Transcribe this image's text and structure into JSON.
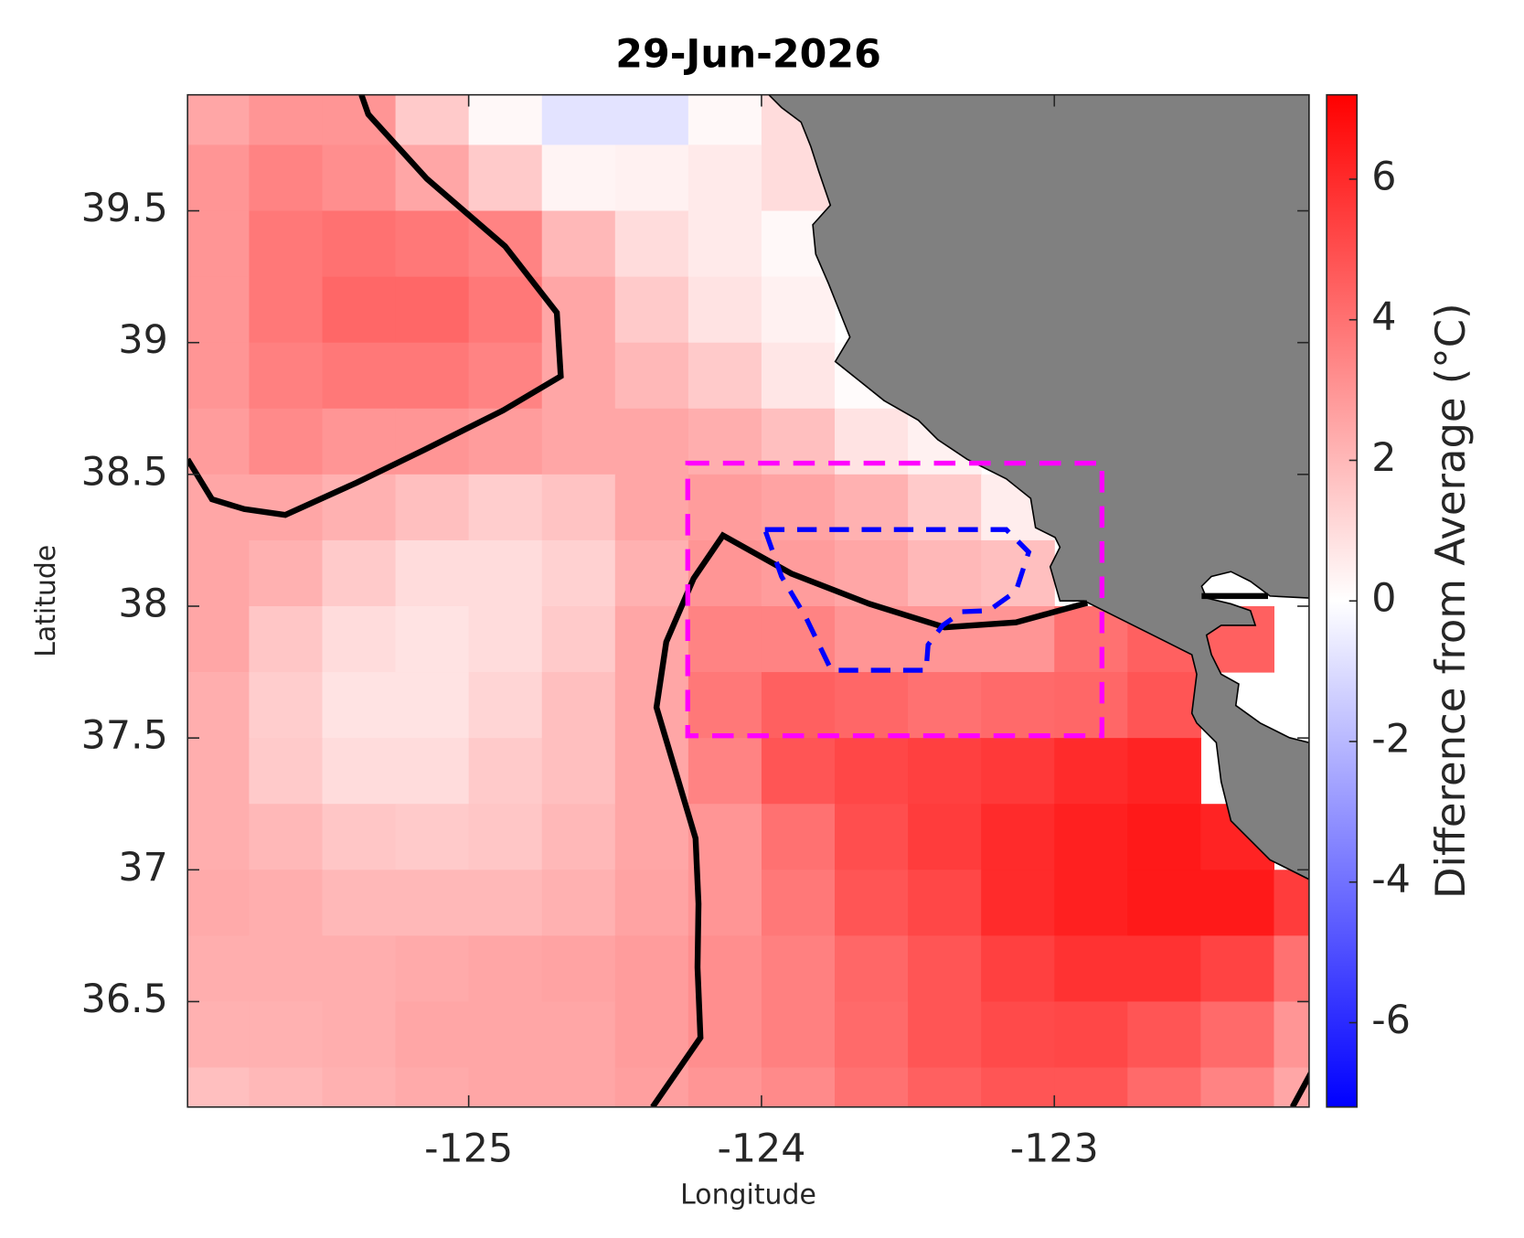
{
  "chart_data": {
    "type": "heatmap",
    "title": "29-Jun-2026",
    "x_label": "Longitude",
    "y_label": "Latitude",
    "colorbar_label": "Difference from Average (°C)",
    "xlim": [
      -125.96,
      -122.13
    ],
    "ylim": [
      36.1,
      39.94
    ],
    "xticks": [
      -125,
      -124,
      -123
    ],
    "yticks": [
      36.5,
      37,
      37.5,
      38,
      38.5,
      39,
      39.5
    ],
    "clim": [
      -7.2,
      7.2
    ],
    "cticks": [
      -6,
      -4,
      -2,
      0,
      2,
      4,
      6
    ],
    "x": [
      -125.875,
      -125.625,
      -125.375,
      -125.125,
      -124.875,
      -124.625,
      -124.375,
      -124.125,
      -123.875,
      -123.625,
      -123.375,
      -123.125,
      -122.875,
      -122.625,
      -122.375,
      -122.125
    ],
    "y": [
      39.875,
      39.625,
      39.375,
      39.125,
      38.875,
      38.625,
      38.375,
      38.125,
      37.875,
      37.625,
      37.375,
      37.125,
      36.875,
      36.625,
      36.375,
      36.125
    ],
    "values": [
      [
        2.5,
        3,
        3,
        1.5,
        0.2,
        -0.8,
        -0.8,
        0.2,
        1,
        null,
        null,
        null,
        null,
        null,
        null,
        null
      ],
      [
        3,
        3.5,
        3.2,
        2.5,
        1.5,
        0.3,
        0.4,
        0.6,
        1,
        null,
        null,
        null,
        null,
        null,
        null,
        null
      ],
      [
        3,
        3.8,
        4,
        3.8,
        3.5,
        2,
        1,
        0.6,
        0.2,
        null,
        null,
        null,
        null,
        null,
        null,
        null
      ],
      [
        3,
        3.8,
        4.3,
        4.3,
        3.8,
        2.5,
        1.5,
        0.8,
        0.4,
        null,
        null,
        null,
        null,
        null,
        null,
        null
      ],
      [
        3,
        3.6,
        3.8,
        3.8,
        3.5,
        2.5,
        2,
        1.5,
        0.7,
        0.1,
        null,
        null,
        null,
        null,
        null,
        null
      ],
      [
        2.8,
        3.3,
        3,
        3,
        2.8,
        2.5,
        2.5,
        2.3,
        1.8,
        0.8,
        0.4,
        null,
        null,
        null,
        null,
        null
      ],
      [
        2.5,
        2.5,
        2.2,
        1.8,
        1.4,
        1.7,
        2.5,
        2.8,
        2.6,
        2.2,
        1.5,
        0.5,
        null,
        null,
        null,
        null
      ],
      [
        2.5,
        2.2,
        1.5,
        1,
        1,
        1.3,
        2.2,
        3,
        2.8,
        2.5,
        2,
        1.8,
        null,
        null,
        null,
        null
      ],
      [
        2.5,
        1.6,
        1,
        0.8,
        1,
        1.5,
        2.5,
        3.5,
        3.5,
        3,
        3,
        3,
        4,
        4.5,
        4.5,
        null
      ],
      [
        2.3,
        1.4,
        0.8,
        0.8,
        1.2,
        1.8,
        2.5,
        3.8,
        4.5,
        4.3,
        4,
        4.2,
        4.3,
        4.8,
        null,
        null
      ],
      [
        2.3,
        1.5,
        1,
        1,
        1.5,
        1.8,
        2.5,
        3.5,
        4.8,
        5.2,
        5.4,
        5.6,
        6,
        6.2,
        null,
        null
      ],
      [
        2.3,
        2,
        1.6,
        1.5,
        1.6,
        2,
        2.5,
        3,
        4,
        5,
        5.5,
        6,
        6.3,
        6.5,
        6.2,
        null
      ],
      [
        2.4,
        2.3,
        2,
        2,
        2,
        2.2,
        2.6,
        3,
        3.8,
        4.8,
        5.2,
        6,
        6.3,
        6.5,
        6.5,
        5.5
      ],
      [
        2.3,
        2.3,
        2.3,
        2.4,
        2.5,
        2.6,
        2.8,
        3.2,
        3.6,
        4.3,
        4.8,
        5.4,
        5.8,
        5.8,
        5.3,
        4
      ],
      [
        2.2,
        2.2,
        2.3,
        2.5,
        2.5,
        2.5,
        2.8,
        3.2,
        3.6,
        4.2,
        4.8,
        5.1,
        5.2,
        4.8,
        4.2,
        3
      ],
      [
        1.8,
        2,
        2.2,
        2.4,
        2.5,
        2.5,
        2.7,
        3,
        3.3,
        4,
        4.5,
        4.8,
        4.8,
        4.2,
        3.5,
        2.5
      ]
    ]
  }
}
